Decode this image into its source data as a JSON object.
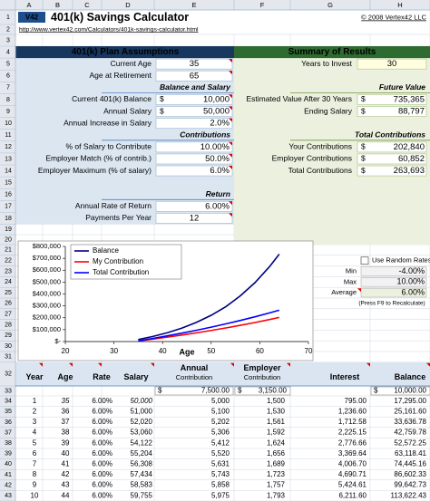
{
  "header": {
    "logo": "V42",
    "title": "401(k) Savings Calculator",
    "copyright": "© 2008 Vertex42 LLC",
    "url": "http://www.vertex42.com/Calculators/401k-savings-calculator.html"
  },
  "column_headers": [
    "A",
    "B",
    "C",
    "D",
    "E",
    "F",
    "G",
    "H"
  ],
  "row_numbers": [
    1,
    2,
    3,
    4,
    5,
    6,
    7,
    8,
    9,
    10,
    11,
    12,
    13,
    14,
    15,
    16,
    17,
    18,
    19,
    20,
    21,
    22,
    23,
    24,
    25,
    26,
    27,
    28,
    29,
    30,
    31,
    32,
    33,
    34,
    35,
    36,
    37,
    38,
    39,
    40,
    41,
    42,
    43
  ],
  "assumptions": {
    "title": "401(k) Plan Assumptions",
    "items": [
      {
        "label": "Current Age",
        "value": 35
      },
      {
        "label": "Age at Retirement",
        "value": 65
      },
      {
        "heading": "Balance and Salary"
      },
      {
        "label": "Current 401(k) Balance",
        "currency": "$",
        "value": "10,000"
      },
      {
        "label": "Annual Salary",
        "currency": "$",
        "value": "50,000"
      },
      {
        "label": "Annual Increase in Salary",
        "value": "2.0%"
      },
      {
        "heading": "Contributions"
      },
      {
        "label": "% of Salary to Contribute",
        "value": "10.00%"
      },
      {
        "label": "Employer Match (% of contrib.)",
        "value": "50.0%"
      },
      {
        "label": "Employer Maximum (% of salary)",
        "value": "6.0%"
      },
      {
        "heading": "Return"
      },
      {
        "label": "Annual Rate of Return",
        "value": "6.00%"
      },
      {
        "label": "Payments Per Year",
        "value": 12
      }
    ]
  },
  "summary": {
    "title": "Summary of Results",
    "items": [
      {
        "label": "Years to Invest",
        "value": 30
      },
      {
        "heading": "Future Value"
      },
      {
        "label": "Estimated Value After 30 Years",
        "currency": "$",
        "value": "735,365"
      },
      {
        "label": "Ending Salary",
        "currency": "$",
        "value": "88,797"
      },
      {
        "heading": "Total Contributions"
      },
      {
        "label": "Your Contributions",
        "currency": "$",
        "value": "202,840"
      },
      {
        "label": "Employer Contributions",
        "currency": "$",
        "value": "60,852"
      },
      {
        "label": "Total Contributions",
        "currency": "$",
        "value": "263,693"
      }
    ]
  },
  "chart_data": {
    "type": "line",
    "x": [
      35,
      38,
      41,
      44,
      47,
      50,
      53,
      56,
      59,
      62,
      64
    ],
    "series": [
      {
        "name": "Balance",
        "color": "#000080",
        "values": [
          17295,
          42760,
          74445,
          113622,
          161809,
          220824,
          292831,
          385000,
          495000,
          630000,
          735365
        ]
      },
      {
        "name": "My Contribution",
        "color": "#ff0000",
        "values": [
          5000,
          20608,
          37171,
          54749,
          73404,
          93196,
          114203,
          136495,
          160152,
          185256,
          202840
        ]
      },
      {
        "name": "Total Contribution",
        "color": "#0000ff",
        "values": [
          6500,
          26790,
          48322,
          71174,
          95425,
          121155,
          148464,
          177444,
          208198,
          240833,
          263693
        ]
      }
    ],
    "x_label": "Age",
    "xlim": [
      20,
      70
    ],
    "xticks": [
      20,
      30,
      40,
      50,
      60,
      70
    ],
    "ylim": [
      0,
      800000
    ],
    "yticks": [
      {
        "value": 0,
        "label": "$-"
      },
      {
        "value": 100000,
        "label": "$100,000"
      },
      {
        "value": 200000,
        "label": "$200,000"
      },
      {
        "value": 300000,
        "label": "$300,000"
      },
      {
        "value": 400000,
        "label": "$400,000"
      },
      {
        "value": 500000,
        "label": "$500,000"
      },
      {
        "value": 600000,
        "label": "$600,000"
      },
      {
        "value": 700000,
        "label": "$700,000"
      },
      {
        "value": 800000,
        "label": "$800,000"
      }
    ],
    "grid": false,
    "legend": "upper left"
  },
  "random_rates": {
    "checkbox_label": "Use Random Rates",
    "rows": [
      {
        "label": "Min",
        "value": "-4.00%"
      },
      {
        "label": "Max",
        "value": "10.00%"
      },
      {
        "label": "Average",
        "value": "6.00%"
      }
    ],
    "note": "(Press F9 to Recalculate)"
  },
  "table": {
    "headers": [
      [
        "Year"
      ],
      [
        "Age"
      ],
      [
        "Rate"
      ],
      [
        "Salary"
      ],
      [
        "Annual",
        "Contribution"
      ],
      [
        "Employer",
        "Contribution"
      ],
      [
        "Interest"
      ],
      [
        "Balance"
      ]
    ],
    "start": {
      "currency": "$",
      "annual": "7,500.00",
      "employer": "3,150.00",
      "balance": "10,000.00"
    },
    "rows": [
      [
        1,
        35,
        "6.00%",
        "50,000",
        "5,000",
        "1,500",
        "795.00",
        "17,295.00"
      ],
      [
        2,
        36,
        "6.00%",
        "51,000",
        "5,100",
        "1,530",
        "1,236.60",
        "25,161.60"
      ],
      [
        3,
        37,
        "6.00%",
        "52,020",
        "5,202",
        "1,561",
        "1,712.58",
        "33,636.78"
      ],
      [
        4,
        38,
        "6.00%",
        "53,060",
        "5,306",
        "1,592",
        "2,225.15",
        "42,759.78"
      ],
      [
        5,
        39,
        "6.00%",
        "54,122",
        "5,412",
        "1,624",
        "2,776.66",
        "52,572.25"
      ],
      [
        6,
        40,
        "6.00%",
        "55,204",
        "5,520",
        "1,656",
        "3,369.64",
        "63,118.41"
      ],
      [
        7,
        41,
        "6.00%",
        "56,308",
        "5,631",
        "1,689",
        "4,006.70",
        "74,445.16"
      ],
      [
        8,
        42,
        "6.00%",
        "57,434",
        "5,743",
        "1,723",
        "4,690.71",
        "86,602.33"
      ],
      [
        9,
        43,
        "6.00%",
        "58,583",
        "5,858",
        "1,757",
        "5,424.61",
        "99,642.73"
      ],
      [
        10,
        44,
        "6.00%",
        "59,755",
        "5,975",
        "1,793",
        "6,211.60",
        "113,622.43"
      ]
    ]
  }
}
